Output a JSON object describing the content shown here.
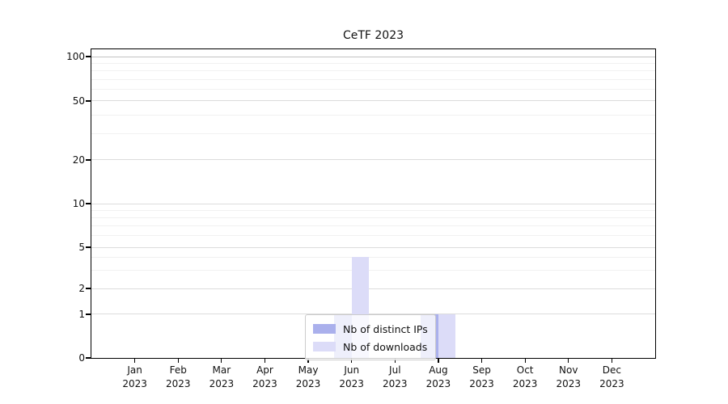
{
  "chart_data": {
    "type": "bar",
    "title": "CeTF 2023",
    "categories": [
      {
        "line1": "Jan",
        "line2": "2023"
      },
      {
        "line1": "Feb",
        "line2": "2023"
      },
      {
        "line1": "Mar",
        "line2": "2023"
      },
      {
        "line1": "Apr",
        "line2": "2023"
      },
      {
        "line1": "May",
        "line2": "2023"
      },
      {
        "line1": "Jun",
        "line2": "2023"
      },
      {
        "line1": "Jul",
        "line2": "2023"
      },
      {
        "line1": "Aug",
        "line2": "2023"
      },
      {
        "line1": "Sep",
        "line2": "2023"
      },
      {
        "line1": "Oct",
        "line2": "2023"
      },
      {
        "line1": "Nov",
        "line2": "2023"
      },
      {
        "line1": "Dec",
        "line2": "2023"
      }
    ],
    "series": [
      {
        "name": "Nb of distinct IPs",
        "color": "#aab0ec",
        "values": [
          0,
          0,
          0,
          0,
          0,
          1,
          0,
          1,
          0,
          0,
          0,
          0
        ]
      },
      {
        "name": "Nb of downloads",
        "color": "#dcdcf8",
        "values": [
          0,
          0,
          0,
          0,
          0,
          4,
          0,
          1,
          0,
          0,
          0,
          0
        ]
      }
    ],
    "y_axis": {
      "scale": "symlog",
      "ticks": [
        0,
        1,
        2,
        5,
        10,
        20,
        50,
        100
      ],
      "minor_gridlines": [
        3,
        4,
        6,
        7,
        8,
        9,
        30,
        40,
        60,
        70,
        80,
        90
      ],
      "ylim": [
        0,
        100
      ]
    },
    "x_axis": {
      "ticks_per_slot": 1,
      "slots": 13
    },
    "legend": {
      "position": "bottom-center",
      "entries_from_series": true
    },
    "grid": {
      "major": true,
      "minor": true
    }
  },
  "colors": {
    "grid_major": "#dcdcdc",
    "grid_minor": "#f1f1f1",
    "grid_top": "#c2c2c2",
    "axis": "#000000",
    "text": "#111111",
    "legend_border": "#cccccc"
  }
}
